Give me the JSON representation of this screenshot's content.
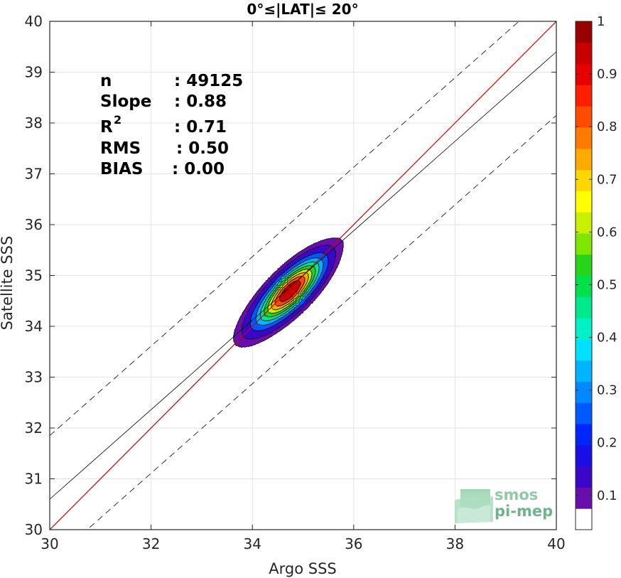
{
  "chart_data": {
    "type": "heatmap",
    "title": "0°≤|LAT|≤ 20°",
    "xlabel": "Argo SSS",
    "ylabel": "Satellite SSS",
    "xlim": [
      30,
      40
    ],
    "ylim": [
      30,
      40
    ],
    "xticks": [
      "30",
      "32",
      "34",
      "36",
      "38",
      "40"
    ],
    "yticks": [
      "30",
      "31",
      "32",
      "33",
      "34",
      "35",
      "36",
      "37",
      "38",
      "39",
      "40"
    ],
    "grid": true,
    "stats": {
      "n_label": "n",
      "n_value": ": 49125",
      "slope_label": "Slope",
      "slope_value": ": 0.88",
      "r2_label": "R",
      "r2_sup": "2",
      "r2_value": ": 0.71",
      "rms_label": "RMS",
      "rms_value": ": 0.50",
      "bias_label": "BIAS",
      "bias_value": ": 0.00"
    },
    "lines": {
      "identity": {
        "slope": 1.0,
        "intercept": 0.0,
        "color": "#cc0000"
      },
      "regression": {
        "x": [
          30,
          40
        ],
        "y": [
          30.6,
          39.4
        ],
        "color": "#000000"
      },
      "rms_bounds": {
        "offset": 1.25,
        "style": "dashed",
        "color": "#000000"
      }
    },
    "density_center": {
      "x": 34.75,
      "y": 34.7
    },
    "density_levels": [
      0.05,
      0.1,
      0.2,
      0.3,
      0.4,
      0.5,
      0.6,
      0.7,
      0.8,
      0.9
    ],
    "colorbar": {
      "min": 0.05,
      "max": 1.0,
      "ticks": [
        "0.1",
        "0.2",
        "0.3",
        "0.4",
        "0.5",
        "0.6",
        "0.7",
        "0.8",
        "0.9",
        "1"
      ],
      "colors": [
        "#ffffff",
        "#6a0dad",
        "#3b06c8",
        "#1a0ee6",
        "#0026ff",
        "#0059ff",
        "#0089ff",
        "#00b4ff",
        "#00e1ff",
        "#00f0c8",
        "#00e88c",
        "#00e04a",
        "#28d418",
        "#7ee600",
        "#c8f000",
        "#ffff00",
        "#ffd700",
        "#ffaa00",
        "#ff7b00",
        "#ff4c00",
        "#ff1e00",
        "#e60000",
        "#c80000",
        "#9b0000"
      ]
    },
    "logo": {
      "line1": "smos",
      "line2": "pi-mep"
    }
  }
}
